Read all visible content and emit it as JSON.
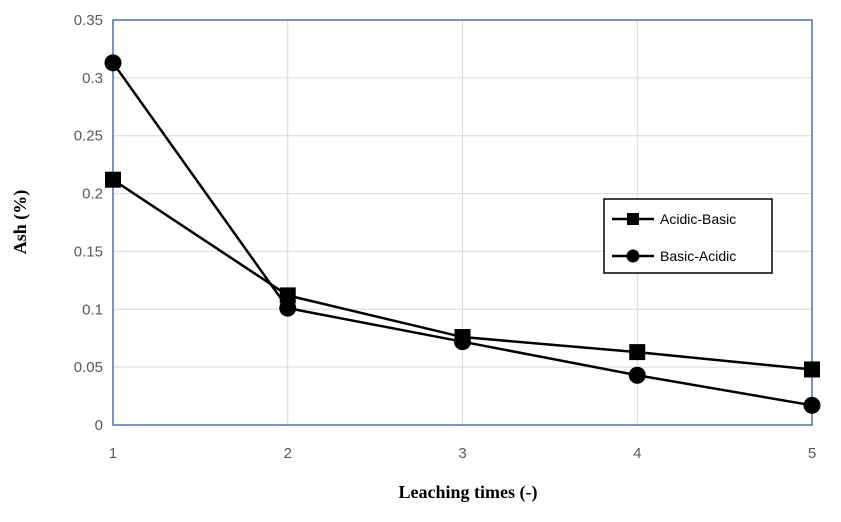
{
  "chart_data": {
    "type": "line",
    "title": "",
    "xlabel": "Leaching times (-)",
    "ylabel": "Ash (%)",
    "x": [
      1,
      2,
      3,
      4,
      5
    ],
    "xlim": [
      1,
      5
    ],
    "ylim": [
      0,
      0.35
    ],
    "yticks": [
      0,
      0.05,
      0.1,
      0.15,
      0.2,
      0.25,
      0.3,
      0.35
    ],
    "ytick_labels": [
      "0",
      "0.05",
      "0.1",
      "0.15",
      "0.2",
      "0.25",
      "0.3",
      "0.35"
    ],
    "xtick_labels": [
      "1",
      "2",
      "3",
      "4",
      "5"
    ],
    "grid": true,
    "legend_position": "right",
    "series": [
      {
        "name": "Acidic-Basic",
        "marker": "square",
        "values": [
          0.212,
          0.112,
          0.076,
          0.063,
          0.048
        ]
      },
      {
        "name": "Basic-Acidic",
        "marker": "circle",
        "values": [
          0.313,
          0.101,
          0.072,
          0.043,
          0.017
        ]
      }
    ],
    "colors": {
      "line": "#000000",
      "grid": "#d9d9d9",
      "frame": "#4472c4",
      "tick": "#595959"
    }
  }
}
